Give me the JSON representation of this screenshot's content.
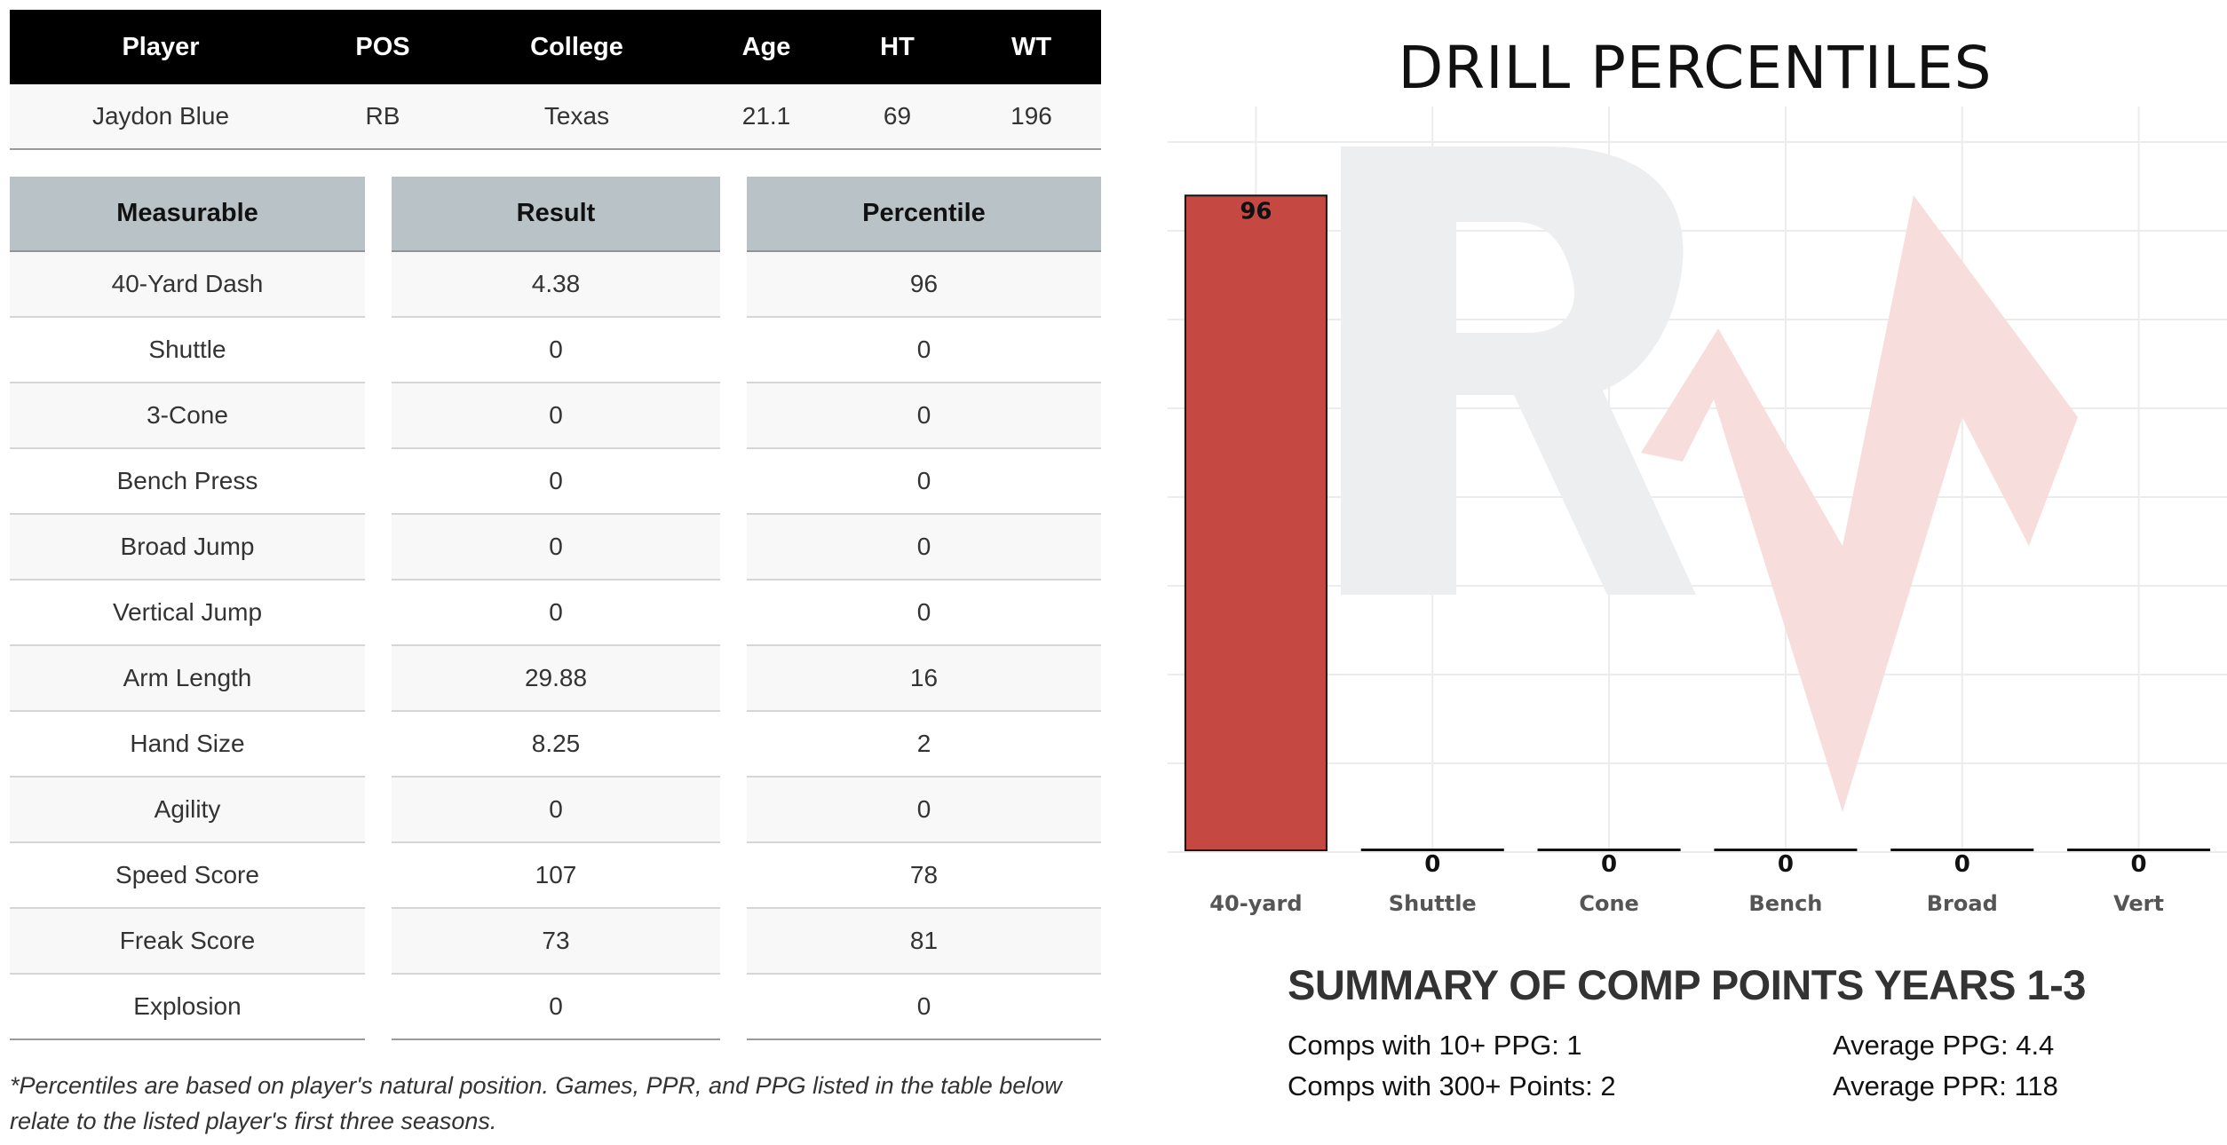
{
  "player_table": {
    "headers": [
      "Player",
      "POS",
      "College",
      "Age",
      "HT",
      "WT"
    ],
    "row": [
      "Jaydon Blue",
      "RB",
      "Texas",
      "21.1",
      "69",
      "196"
    ]
  },
  "measurables": {
    "headers": [
      "Measurable",
      "Result",
      "Percentile"
    ],
    "rows": [
      [
        "40-Yard Dash",
        "4.38",
        "96"
      ],
      [
        "Shuttle",
        "0",
        "0"
      ],
      [
        "3-Cone",
        "0",
        "0"
      ],
      [
        "Bench Press",
        "0",
        "0"
      ],
      [
        "Broad Jump",
        "0",
        "0"
      ],
      [
        "Vertical Jump",
        "0",
        "0"
      ],
      [
        "Arm Length",
        "29.88",
        "16"
      ],
      [
        "Hand Size",
        "8.25",
        "2"
      ],
      [
        "Agility",
        "0",
        "0"
      ],
      [
        "Speed Score",
        "107",
        "78"
      ],
      [
        "Freak Score",
        "73",
        "81"
      ],
      [
        "Explosion",
        "0",
        "0"
      ]
    ]
  },
  "footnote": "*Percentiles are based on player's natural position. Games, PPR, and PPG listed in the table below relate to the listed player's first three seasons.",
  "chart_data": {
    "type": "bar",
    "title": "DRILL PERCENTILES",
    "categories": [
      "40-yard",
      "Shuttle",
      "Cone",
      "Bench",
      "Broad",
      "Vert"
    ],
    "values": [
      96,
      0,
      0,
      0,
      0,
      0
    ],
    "xlabel": "",
    "ylabel": "",
    "ylim": [
      0,
      100
    ],
    "grid": true,
    "bar_color": "#c64843",
    "watermark_letter_color": "#eceef0",
    "watermark_mark_color": "#f7dedd"
  },
  "summary": {
    "title": "SUMMARY OF COMP POINTS YEARS 1-3",
    "comps_10_ppg": "Comps with 10+ PPG: 1",
    "comps_300_points": "Comps with 300+ Points: 2",
    "average_ppg": "Average PPG: 4.4",
    "average_ppr": "Average PPR: 118"
  }
}
